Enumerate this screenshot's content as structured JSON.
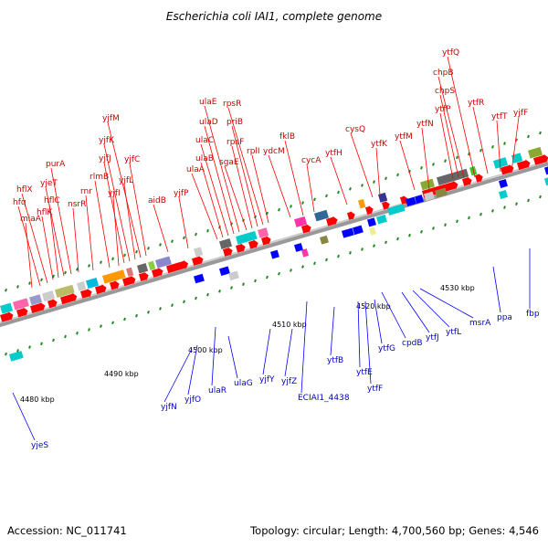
{
  "title": "Escherichia coli IAI1, complete genome",
  "footer": {
    "accession": "Accession: NC_011741",
    "summary": "Topology: circular; Length: 4,700,560 bp; Genes: 4,546"
  },
  "ticks": [
    {
      "label": "4480 kbp",
      "kbp": 4480
    },
    {
      "label": "4490 kbp",
      "kbp": 4490
    },
    {
      "label": "4500 kbp",
      "kbp": 4500
    },
    {
      "label": "4510 kbp",
      "kbp": 4510
    },
    {
      "label": "4520 kbp",
      "kbp": 4520
    },
    {
      "label": "4530 kbp",
      "kbp": 4530
    }
  ],
  "genes_forward": [
    "miaA",
    "hfq",
    "hflX",
    "hflK",
    "hflC",
    "yjeT",
    "purA",
    "nsrR",
    "rnr",
    "rlmB",
    "yjfI",
    "yjfJ",
    "yjfK",
    "yjfL",
    "yjfM",
    "yjfC",
    "aidB",
    "yjfP",
    "ulaA",
    "ulaB",
    "ulaC",
    "ulaD",
    "ulaE",
    "sgaE",
    "rpsF",
    "priB",
    "rpsR",
    "rplI",
    "ydcM",
    "fklB",
    "cycA",
    "ytfH",
    "cysQ",
    "ytfK",
    "ytfM",
    "ytfN",
    "ytfP",
    "chpS",
    "chpB",
    "ytfQ",
    "ytfR",
    "ytfT",
    "yjfF"
  ],
  "genes_reverse": [
    "yjeS",
    "yjfN",
    "yjfO",
    "ulaR",
    "ulaG",
    "yjfY",
    "yjfZ",
    "ECIAI1_4438",
    "ytfB",
    "ytfE",
    "ytfF",
    "ytfG",
    "cpdB",
    "ytfJ",
    "ytfL",
    "msrA",
    "ppa",
    "fbp"
  ],
  "colors": {
    "backbone": "#888888",
    "forward_cds": "#ff0000",
    "reverse_cds": "#0000ff",
    "forward_label": "#cc0000",
    "reverse_label": "#0000cc",
    "tick": "#228b22"
  }
}
